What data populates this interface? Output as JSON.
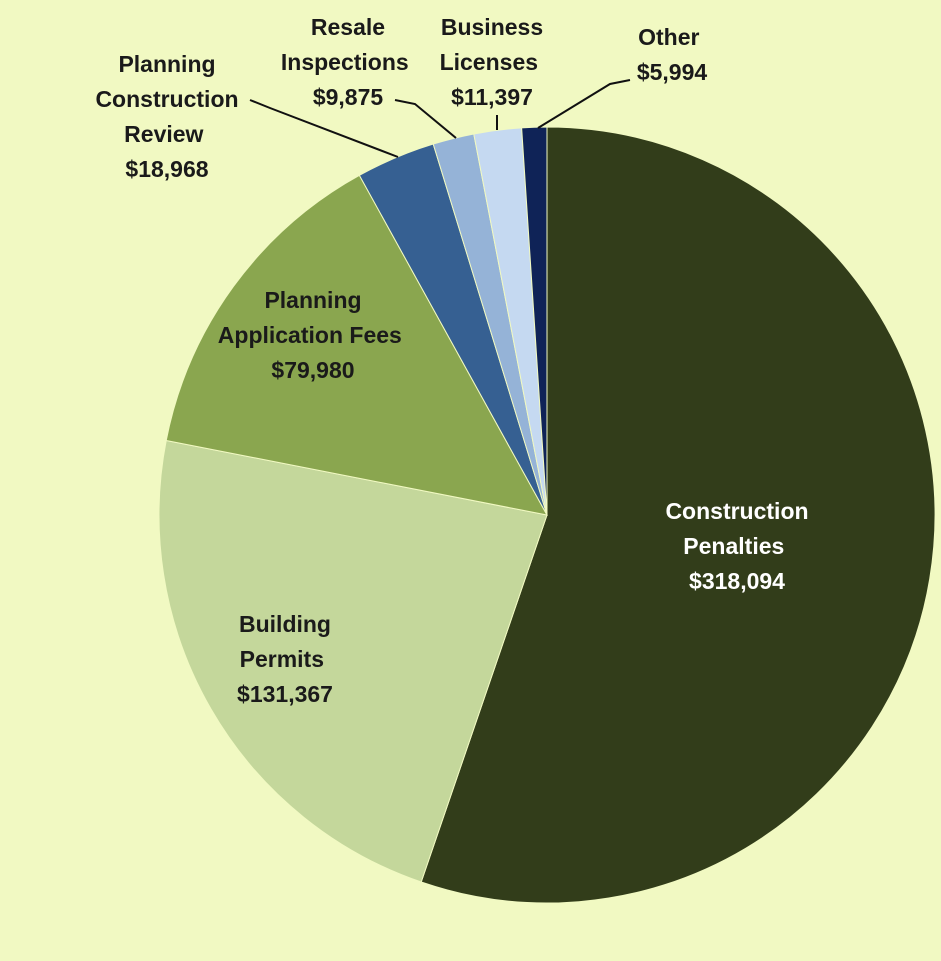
{
  "chart_data": {
    "type": "pie",
    "categories": [
      "Construction Penalties",
      "Building Permits",
      "Planning Application Fees",
      "Planning Construction Review",
      "Resale Inspections",
      "Business Licenses",
      "Other"
    ],
    "values": [
      318094,
      131367,
      79980,
      18968,
      9875,
      11397,
      5994
    ],
    "value_labels": [
      "$318,094",
      "$131,367",
      "$79,980",
      "$18,968",
      "$9,875",
      "$11,397",
      "$5,994"
    ],
    "colors": [
      "#323d1a",
      "#c4d79b",
      "#8aa64f",
      "#366092",
      "#95b3d7",
      "#c5d9f1",
      "#0f2357"
    ]
  }
}
